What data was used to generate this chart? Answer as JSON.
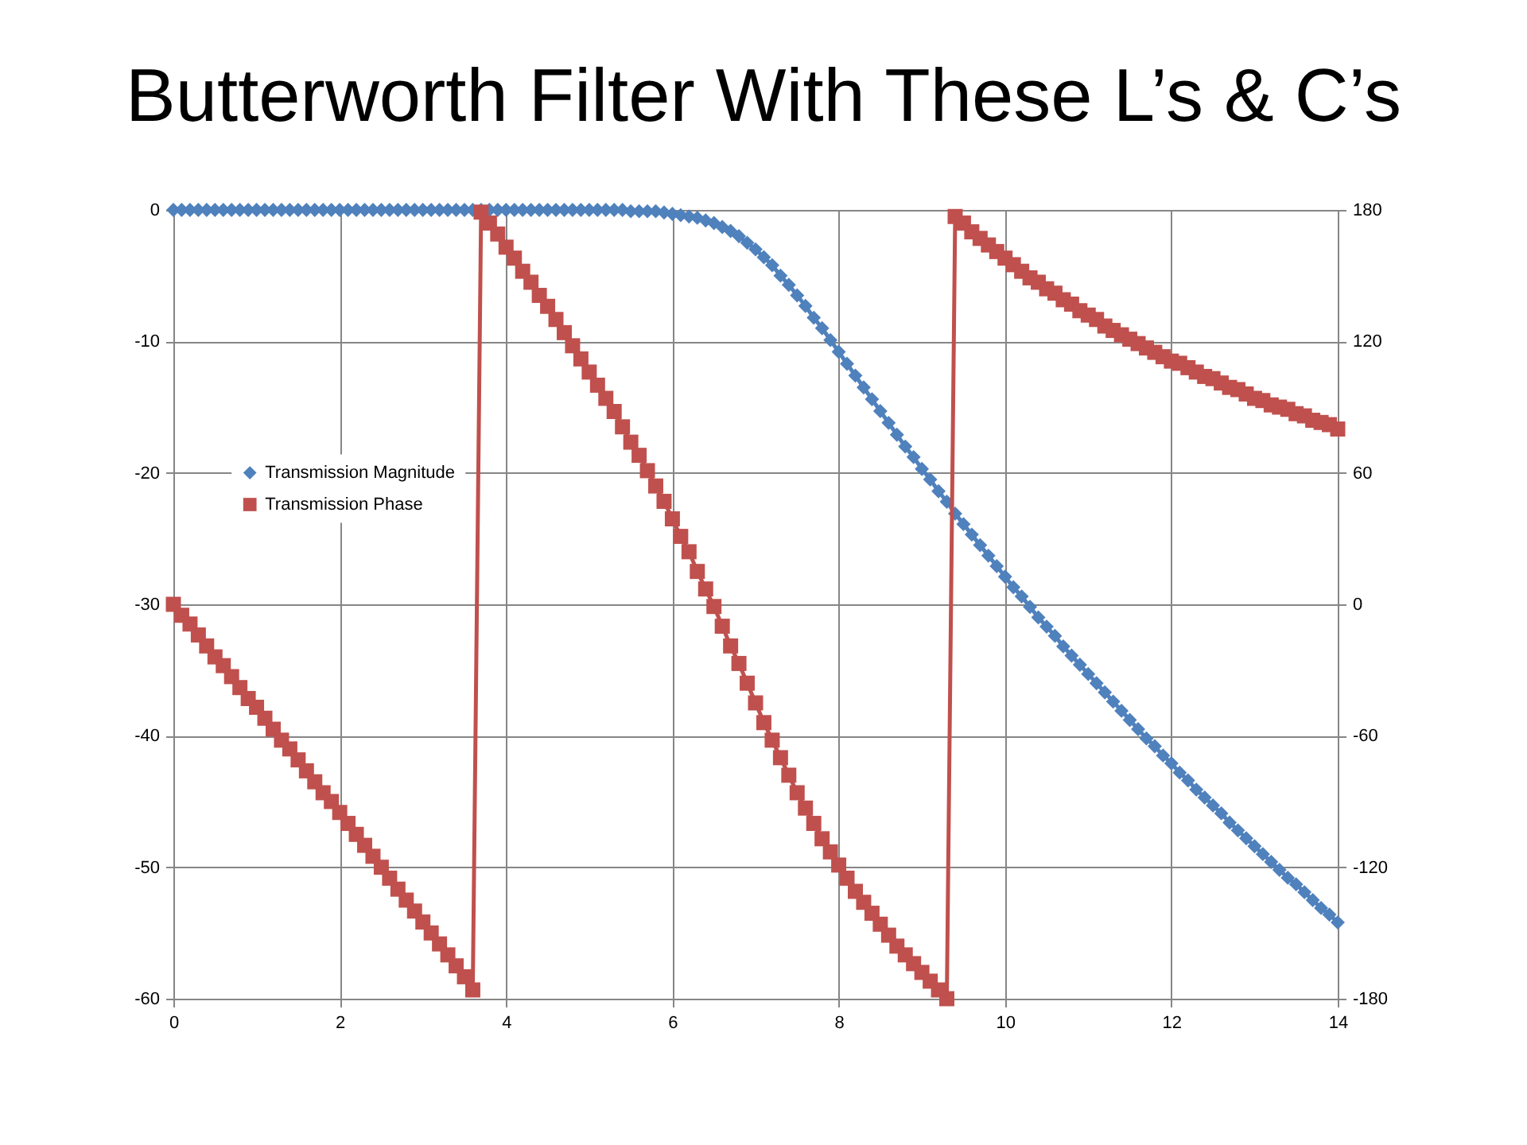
{
  "chart_data": {
    "type": "line",
    "title": "Butterworth Filter With These L’s & C’s",
    "x": [
      0,
      0.1,
      0.2,
      0.3,
      0.4,
      0.5,
      0.6,
      0.7,
      0.8,
      0.9,
      1,
      1.1,
      1.2,
      1.3,
      1.4,
      1.5,
      1.6,
      1.7,
      1.8,
      1.9,
      2,
      2.1,
      2.2,
      2.3,
      2.4,
      2.5,
      2.6,
      2.7,
      2.8,
      2.9,
      3,
      3.1,
      3.2,
      3.3,
      3.4,
      3.5,
      3.6,
      3.7,
      3.8,
      3.9,
      4,
      4.1,
      4.2,
      4.3,
      4.4,
      4.5,
      4.6,
      4.7,
      4.8,
      4.9,
      5,
      5.1,
      5.2,
      5.3,
      5.4,
      5.5,
      5.6,
      5.7,
      5.8,
      5.9,
      6,
      6.1,
      6.2,
      6.3,
      6.4,
      6.5,
      6.6,
      6.7,
      6.8,
      6.9,
      7,
      7.1,
      7.2,
      7.3,
      7.4,
      7.5,
      7.6,
      7.7,
      7.8,
      7.9,
      8,
      8.1,
      8.2,
      8.3,
      8.4,
      8.5,
      8.6,
      8.7,
      8.8,
      8.9,
      9,
      9.1,
      9.2,
      9.3,
      9.4,
      9.5,
      9.6,
      9.7,
      9.8,
      9.9,
      10,
      10.1,
      10.2,
      10.3,
      10.4,
      10.5,
      10.6,
      10.7,
      10.8,
      10.9,
      11,
      11.1,
      11.2,
      11.3,
      11.4,
      11.5,
      11.6,
      11.7,
      11.8,
      11.9,
      12,
      12.1,
      12.2,
      12.3,
      12.4,
      12.5,
      12.6,
      12.7,
      12.8,
      12.9,
      13,
      13.1,
      13.2,
      13.3,
      13.4,
      13.5,
      13.6,
      13.7,
      13.8,
      13.9,
      14
    ],
    "xlim": [
      0,
      14
    ],
    "xticks": [
      0,
      2,
      4,
      6,
      8,
      10,
      12,
      14
    ],
    "ylim": [
      -60,
      0
    ],
    "yticks": [
      -60,
      -50,
      -40,
      -30,
      -20,
      -10,
      0
    ],
    "y2lim": [
      -180,
      180
    ],
    "y2ticks": [
      -180,
      -120,
      -60,
      0,
      60,
      120,
      180
    ],
    "grid": true,
    "legend": "left",
    "series": [
      {
        "name": "Transmission Magnitude",
        "color": "#4f81bd",
        "marker": "diamond",
        "values": [
          0,
          0,
          0,
          0,
          0,
          0,
          0,
          0,
          0,
          0,
          0,
          0,
          0,
          0,
          0,
          0,
          0,
          0,
          0,
          0,
          0,
          0,
          0,
          0,
          0,
          0,
          0,
          0,
          0,
          0,
          0,
          0,
          0,
          0,
          0,
          0,
          0,
          0,
          0,
          0,
          0,
          0,
          0,
          0,
          0,
          0,
          0,
          0,
          0,
          0,
          0,
          0,
          0,
          0,
          0,
          -0.1,
          -0.1,
          -0.1,
          -0.1,
          -0.2,
          -0.3,
          -0.4,
          -0.5,
          -0.6,
          -0.8,
          -1.0,
          -1.3,
          -1.6,
          -2.0,
          -2.5,
          -3.0,
          -3.6,
          -4.2,
          -5.0,
          -5.7,
          -6.5,
          -7.3,
          -8.2,
          -9.0,
          -9.9,
          -10.8,
          -11.7,
          -12.6,
          -13.5,
          -14.4,
          -15.3,
          -16.2,
          -17.1,
          -18.0,
          -18.8,
          -19.7,
          -20.5,
          -21.4,
          -22.2,
          -23.1,
          -23.9,
          -24.7,
          -25.5,
          -26.3,
          -27.1,
          -27.9,
          -28.7,
          -29.4,
          -30.2,
          -31.0,
          -31.7,
          -32.4,
          -33.2,
          -33.9,
          -34.6,
          -35.3,
          -36.0,
          -36.7,
          -37.4,
          -38.1,
          -38.8,
          -39.5,
          -40.2,
          -40.8,
          -41.5,
          -42.1,
          -42.8,
          -43.4,
          -44.1,
          -44.7,
          -45.3,
          -45.9,
          -46.6,
          -47.2,
          -47.8,
          -48.4,
          -49.0,
          -49.6,
          -50.2,
          -50.8,
          -51.3,
          -51.9,
          -52.5,
          -53.1,
          -53.6,
          -54.2
        ]
      },
      {
        "name": "Transmission Phase",
        "color": "#c0504d",
        "marker": "square",
        "axis": "y2",
        "values": [
          0,
          -5,
          -9,
          -14,
          -19,
          -24,
          -28,
          -33,
          -38,
          -43,
          -47,
          -52,
          -57,
          -62,
          -66,
          -71,
          -76,
          -81,
          -86,
          -90,
          -95,
          -100,
          -105,
          -110,
          -115,
          -120,
          -125,
          -130,
          -135,
          -140,
          -145,
          -150,
          -155,
          -160,
          -165,
          -170,
          -176,
          179,
          174,
          169,
          163,
          158,
          152,
          147,
          141,
          136,
          130,
          124,
          118,
          112,
          106,
          100,
          94,
          88,
          81,
          74,
          68,
          61,
          54,
          47,
          39,
          31,
          24,
          15,
          7,
          -1,
          -10,
          -19,
          -27,
          -36,
          -45,
          -54,
          -62,
          -70,
          -78,
          -86,
          -93,
          -100,
          -107,
          -113,
          -119,
          -125,
          -131,
          -136,
          -141,
          -146,
          -151,
          -156,
          -160,
          -164,
          -168,
          -172,
          -176,
          -180,
          177,
          174,
          170,
          167,
          164,
          161,
          158,
          155,
          152,
          149,
          147,
          144,
          142,
          139,
          137,
          134,
          132,
          130,
          127,
          125,
          123,
          121,
          119,
          117,
          115,
          113,
          111,
          110,
          108,
          106,
          104,
          103,
          101,
          99,
          98,
          96,
          94,
          93,
          91,
          90,
          89,
          87,
          86,
          84,
          83,
          82,
          80
        ]
      }
    ]
  }
}
